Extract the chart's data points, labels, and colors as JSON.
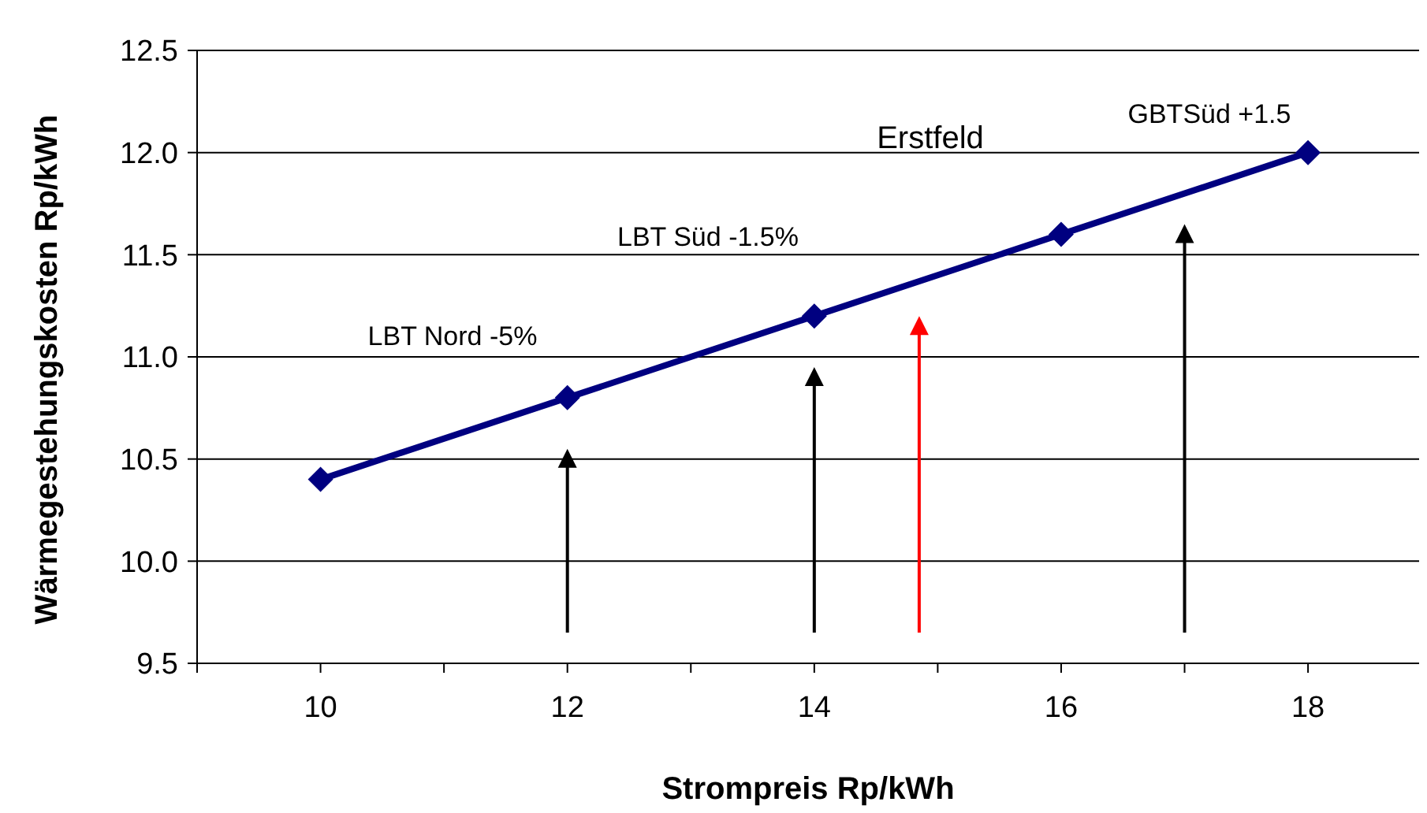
{
  "chart_data": {
    "type": "line",
    "xlabel": "Strompreis Rp/kWh",
    "ylabel": "Wärmegestehungskosten Rp/kWh",
    "x": [
      10,
      12,
      14,
      16,
      18
    ],
    "series": [
      {
        "color": "#000080",
        "values": [
          10.4,
          10.8,
          11.2,
          11.6,
          12.0
        ]
      }
    ],
    "marker": "diamond",
    "line_style": "solid",
    "grid": "y",
    "xlim": [
      9,
      18.9
    ],
    "xticks": [
      {
        "value": 9,
        "label": null
      },
      10,
      {
        "value": 11,
        "label": null
      },
      12,
      {
        "value": 13,
        "label": null
      },
      14,
      {
        "value": 15,
        "label": null
      },
      16,
      {
        "value": 17,
        "label": null
      },
      18
    ],
    "ylim": [
      9.5,
      12.5
    ],
    "yticks": [
      {
        "value": 9.5,
        "label": "9.5"
      },
      {
        "value": 10,
        "label": "10.0"
      },
      {
        "value": 10.5,
        "label": "10.5"
      },
      {
        "value": 11,
        "label": "11.0"
      },
      {
        "value": 11.5,
        "label": "11.5"
      },
      {
        "value": 12,
        "label": "12.0"
      },
      {
        "value": 12.5,
        "label": "12.5"
      }
    ],
    "annotations": [
      "LBT Nord -5%",
      "LBT Süd -1.5%",
      "Erstfeld",
      "GBTSüd +1.5"
    ]
  }
}
